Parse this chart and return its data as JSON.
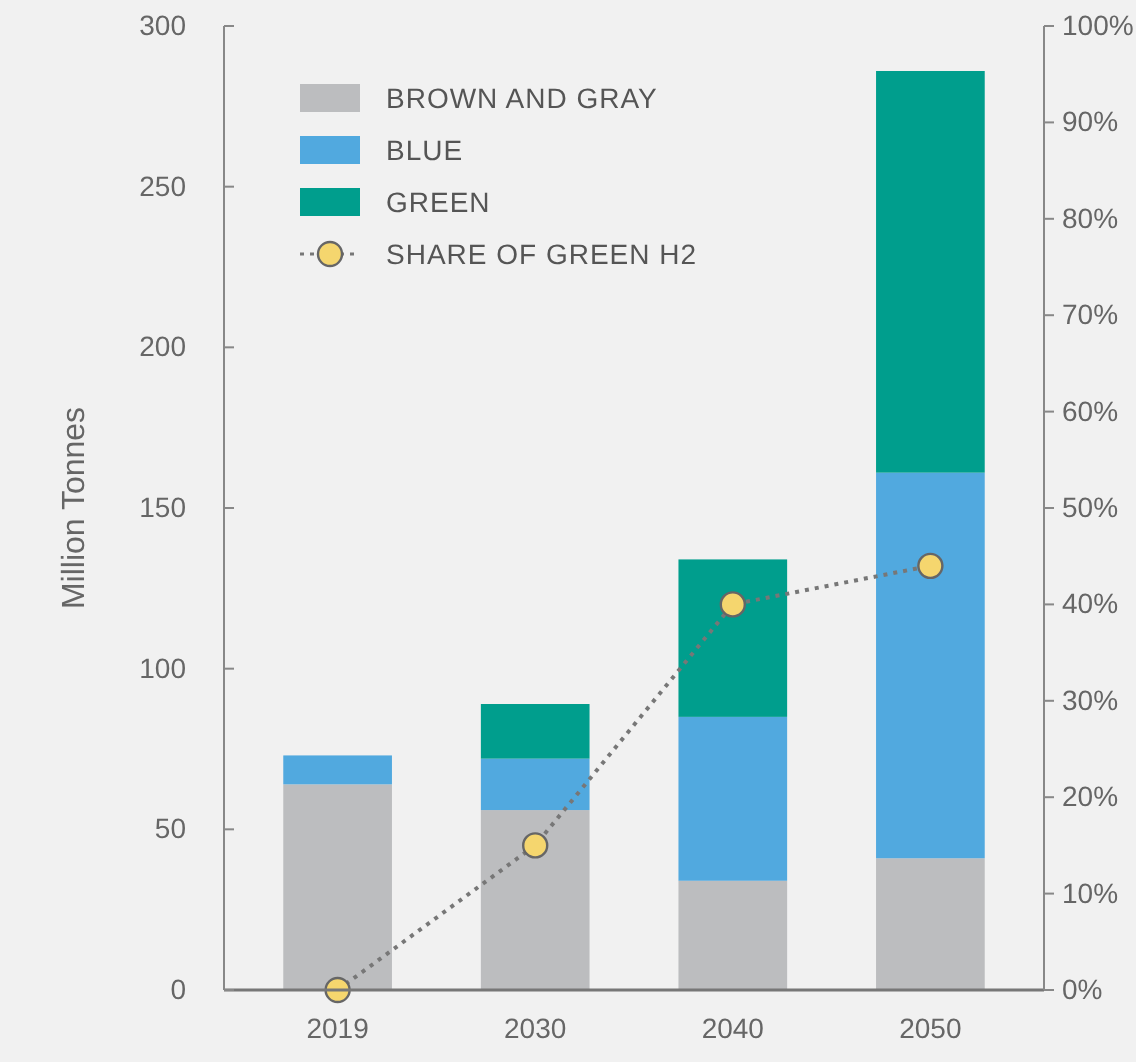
{
  "chart_data": {
    "type": "bar",
    "stacked": true,
    "ylabel": "Million Tonnes",
    "categories": [
      "2019",
      "2030",
      "2040",
      "2050"
    ],
    "series": [
      {
        "name": "BROWN AND GRAY",
        "color": "#bcbdbf",
        "values": [
          64,
          56,
          34,
          41
        ]
      },
      {
        "name": "BLUE",
        "color": "#51a9df",
        "values": [
          9,
          16,
          51,
          120
        ]
      },
      {
        "name": "GREEN",
        "color": "#009e8d",
        "values": [
          null,
          17,
          49,
          125
        ]
      },
      {
        "name": "SHARE OF GREEN H2",
        "type": "line",
        "axis": "y2",
        "color": "#f5d66e",
        "marker": "circle",
        "line_style": "dotted",
        "values": [
          0,
          15,
          40,
          44
        ]
      }
    ],
    "ylim": [
      0,
      300
    ],
    "yticks": [
      0,
      50,
      100,
      150,
      200,
      250,
      300
    ],
    "y2lim": [
      0,
      100
    ],
    "y2ticks": [
      {
        "value": 0,
        "label": "0%"
      },
      {
        "value": 10,
        "label": "10%"
      },
      {
        "value": 20,
        "label": "20%"
      },
      {
        "value": 30,
        "label": "30%"
      },
      {
        "value": 40,
        "label": "40%"
      },
      {
        "value": 50,
        "label": "50%"
      },
      {
        "value": 60,
        "label": "60%"
      },
      {
        "value": 70,
        "label": "70%"
      },
      {
        "value": 80,
        "label": "80%"
      },
      {
        "value": 90,
        "label": "90%"
      },
      {
        "value": 100,
        "label": "100%"
      }
    ],
    "legend": "top left",
    "grid": false
  }
}
